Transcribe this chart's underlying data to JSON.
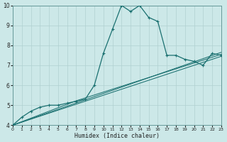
{
  "xlabel": "Humidex (Indice chaleur)",
  "xlim": [
    0,
    23
  ],
  "ylim": [
    4,
    10
  ],
  "yticks": [
    4,
    5,
    6,
    7,
    8,
    9,
    10
  ],
  "xticks": [
    0,
    1,
    2,
    3,
    4,
    5,
    6,
    7,
    8,
    9,
    10,
    11,
    12,
    13,
    14,
    15,
    16,
    17,
    18,
    19,
    20,
    21,
    22,
    23
  ],
  "background_color": "#cce8e8",
  "line_color": "#1a7070",
  "grid_color": "#b0d0d0",
  "curve1_x": [
    0,
    1,
    2,
    3,
    4,
    5,
    6,
    7,
    8,
    9,
    10,
    11,
    12,
    13,
    14,
    15,
    16,
    17,
    18,
    19,
    20,
    21,
    22,
    23
  ],
  "curve1_y": [
    4.0,
    4.4,
    4.7,
    4.9,
    5.0,
    5.0,
    5.1,
    5.2,
    5.3,
    6.0,
    7.6,
    8.8,
    10.0,
    9.7,
    10.0,
    9.4,
    9.2,
    7.5,
    7.5,
    7.3,
    7.2,
    7.0,
    7.6,
    7.5
  ],
  "curve2_x": [
    0,
    23
  ],
  "curve2_y": [
    4.0,
    7.65
  ],
  "curve3_x": [
    0,
    23
  ],
  "curve3_y": [
    4.0,
    7.45
  ],
  "curve4_x": [
    0,
    7,
    23
  ],
  "curve4_y": [
    4.0,
    5.22,
    7.55
  ]
}
